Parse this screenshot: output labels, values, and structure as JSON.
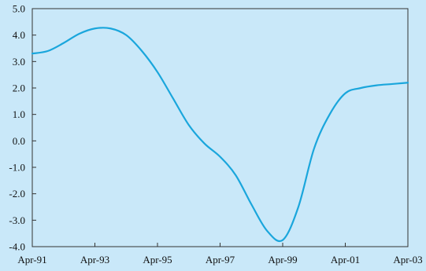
{
  "colors": {
    "background": "#c9e8f9",
    "plot_area": "#c9e8f9",
    "axis": "#333333",
    "series_line": "#1aa6dc",
    "text": "#111111"
  },
  "chart_data": {
    "type": "line",
    "title": "",
    "xlabel": "",
    "ylabel": "",
    "ylim": [
      -4.0,
      5.0
    ],
    "y_ticks": [
      "5.0",
      "4.0",
      "3.0",
      "2.0",
      "1.0",
      "0.0",
      "-1.0",
      "-2.0",
      "-3.0",
      "-4.0"
    ],
    "x_ticks": [
      "Apr-91",
      "Apr-93",
      "Apr-95",
      "Apr-97",
      "Apr-99",
      "Apr-01",
      "Apr-03"
    ],
    "grid": false,
    "legend": "none",
    "series": [
      {
        "x": [
          "Apr-91",
          "Oct-91",
          "Apr-92",
          "Oct-92",
          "Apr-93",
          "Oct-93",
          "Apr-94",
          "Oct-94",
          "Apr-95",
          "Oct-95",
          "Apr-96",
          "Oct-96",
          "Apr-97",
          "Oct-97",
          "Apr-98",
          "Oct-98",
          "Apr-99",
          "Oct-99",
          "Apr-00",
          "Oct-00",
          "Apr-01",
          "Oct-01",
          "Apr-02",
          "Oct-02",
          "Apr-03"
        ],
        "values": [
          3.3,
          3.4,
          3.7,
          4.05,
          4.25,
          4.25,
          4.0,
          3.4,
          2.6,
          1.6,
          0.6,
          -0.1,
          -0.6,
          -1.3,
          -2.4,
          -3.4,
          -3.75,
          -2.5,
          -0.3,
          1.0,
          1.8,
          2.0,
          2.1,
          2.15,
          2.2
        ]
      }
    ]
  }
}
